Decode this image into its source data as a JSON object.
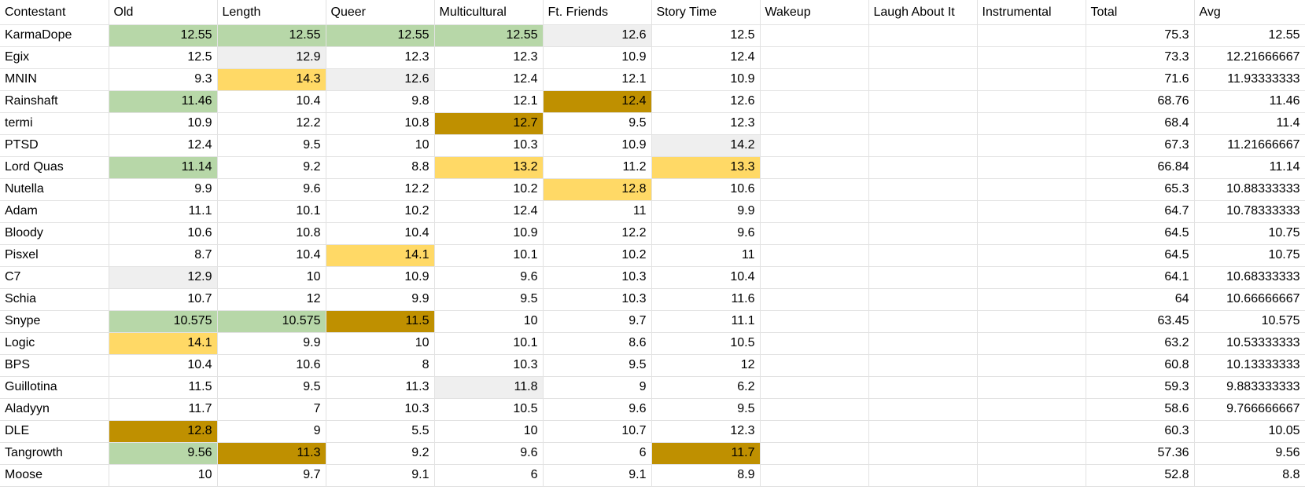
{
  "sheet": {
    "headers": [
      "Contestant",
      "Old",
      "Length",
      "Queer",
      "Multicultural",
      "Ft. Friends",
      "Story Time",
      "Wakeup",
      "Laugh About It",
      "Instrumental",
      "Total",
      "Avg"
    ],
    "fill_colors": {
      "green": "#b7d7a8",
      "gray": "#efefef",
      "yellow": "#ffd966",
      "gold": "#bf9000"
    },
    "rows": [
      {
        "cells": [
          "KarmaDope",
          "12.55",
          "12.55",
          "12.55",
          "12.55",
          "12.6",
          "12.5",
          "",
          "",
          "",
          "75.3",
          "12.55"
        ],
        "fills": [
          "",
          "green",
          "green",
          "green",
          "green",
          "gray",
          "",
          "",
          "",
          "",
          "",
          ""
        ]
      },
      {
        "cells": [
          "Egix",
          "12.5",
          "12.9",
          "12.3",
          "12.3",
          "10.9",
          "12.4",
          "",
          "",
          "",
          "73.3",
          "12.21666667"
        ],
        "fills": [
          "",
          "",
          "gray",
          "",
          "",
          "",
          "",
          "",
          "",
          "",
          "",
          ""
        ]
      },
      {
        "cells": [
          "MNIN",
          "9.3",
          "14.3",
          "12.6",
          "12.4",
          "12.1",
          "10.9",
          "",
          "",
          "",
          "71.6",
          "11.93333333"
        ],
        "fills": [
          "",
          "",
          "yellow",
          "gray",
          "",
          "",
          "",
          "",
          "",
          "",
          "",
          ""
        ]
      },
      {
        "cells": [
          "Rainshaft",
          "11.46",
          "10.4",
          "9.8",
          "12.1",
          "12.4",
          "12.6",
          "",
          "",
          "",
          "68.76",
          "11.46"
        ],
        "fills": [
          "",
          "green",
          "",
          "",
          "",
          "gold",
          "",
          "",
          "",
          "",
          "",
          ""
        ]
      },
      {
        "cells": [
          "termi",
          "10.9",
          "12.2",
          "10.8",
          "12.7",
          "9.5",
          "12.3",
          "",
          "",
          "",
          "68.4",
          "11.4"
        ],
        "fills": [
          "",
          "",
          "",
          "",
          "gold",
          "",
          "",
          "",
          "",
          "",
          "",
          ""
        ]
      },
      {
        "cells": [
          "PTSD",
          "12.4",
          "9.5",
          "10",
          "10.3",
          "10.9",
          "14.2",
          "",
          "",
          "",
          "67.3",
          "11.21666667"
        ],
        "fills": [
          "",
          "",
          "",
          "",
          "",
          "",
          "gray",
          "",
          "",
          "",
          "",
          ""
        ]
      },
      {
        "cells": [
          "Lord Quas",
          "11.14",
          "9.2",
          "8.8",
          "13.2",
          "11.2",
          "13.3",
          "",
          "",
          "",
          "66.84",
          "11.14"
        ],
        "fills": [
          "",
          "green",
          "",
          "",
          "yellow",
          "",
          "yellow",
          "",
          "",
          "",
          "",
          ""
        ]
      },
      {
        "cells": [
          "Nutella",
          "9.9",
          "9.6",
          "12.2",
          "10.2",
          "12.8",
          "10.6",
          "",
          "",
          "",
          "65.3",
          "10.88333333"
        ],
        "fills": [
          "",
          "",
          "",
          "",
          "",
          "yellow",
          "",
          "",
          "",
          "",
          "",
          ""
        ]
      },
      {
        "cells": [
          "Adam",
          "11.1",
          "10.1",
          "10.2",
          "12.4",
          "11",
          "9.9",
          "",
          "",
          "",
          "64.7",
          "10.78333333"
        ],
        "fills": [
          "",
          "",
          "",
          "",
          "",
          "",
          "",
          "",
          "",
          "",
          "",
          ""
        ]
      },
      {
        "cells": [
          "Bloody",
          "10.6",
          "10.8",
          "10.4",
          "10.9",
          "12.2",
          "9.6",
          "",
          "",
          "",
          "64.5",
          "10.75"
        ],
        "fills": [
          "",
          "",
          "",
          "",
          "",
          "",
          "",
          "",
          "",
          "",
          "",
          ""
        ]
      },
      {
        "cells": [
          "Pisxel",
          "8.7",
          "10.4",
          "14.1",
          "10.1",
          "10.2",
          "11",
          "",
          "",
          "",
          "64.5",
          "10.75"
        ],
        "fills": [
          "",
          "",
          "",
          "yellow",
          "",
          "",
          "",
          "",
          "",
          "",
          "",
          ""
        ]
      },
      {
        "cells": [
          "C7",
          "12.9",
          "10",
          "10.9",
          "9.6",
          "10.3",
          "10.4",
          "",
          "",
          "",
          "64.1",
          "10.68333333"
        ],
        "fills": [
          "",
          "gray",
          "",
          "",
          "",
          "",
          "",
          "",
          "",
          "",
          "",
          ""
        ]
      },
      {
        "cells": [
          "Schia",
          "10.7",
          "12",
          "9.9",
          "9.5",
          "10.3",
          "11.6",
          "",
          "",
          "",
          "64",
          "10.66666667"
        ],
        "fills": [
          "",
          "",
          "",
          "",
          "",
          "",
          "",
          "",
          "",
          "",
          "",
          ""
        ]
      },
      {
        "cells": [
          "Snype",
          "10.575",
          "10.575",
          "11.5",
          "10",
          "9.7",
          "11.1",
          "",
          "",
          "",
          "63.45",
          "10.575"
        ],
        "fills": [
          "",
          "green",
          "green",
          "gold",
          "",
          "",
          "",
          "",
          "",
          "",
          "",
          ""
        ]
      },
      {
        "cells": [
          "Logic",
          "14.1",
          "9.9",
          "10",
          "10.1",
          "8.6",
          "10.5",
          "",
          "",
          "",
          "63.2",
          "10.53333333"
        ],
        "fills": [
          "",
          "yellow",
          "",
          "",
          "",
          "",
          "",
          "",
          "",
          "",
          "",
          ""
        ]
      },
      {
        "cells": [
          "BPS",
          "10.4",
          "10.6",
          "8",
          "10.3",
          "9.5",
          "12",
          "",
          "",
          "",
          "60.8",
          "10.13333333"
        ],
        "fills": [
          "",
          "",
          "",
          "",
          "",
          "",
          "",
          "",
          "",
          "",
          "",
          ""
        ]
      },
      {
        "cells": [
          "Guillotina",
          "11.5",
          "9.5",
          "11.3",
          "11.8",
          "9",
          "6.2",
          "",
          "",
          "",
          "59.3",
          "9.883333333"
        ],
        "fills": [
          "",
          "",
          "",
          "",
          "gray",
          "",
          "",
          "",
          "",
          "",
          "",
          ""
        ]
      },
      {
        "cells": [
          "Aladyyn",
          "11.7",
          "7",
          "10.3",
          "10.5",
          "9.6",
          "9.5",
          "",
          "",
          "",
          "58.6",
          "9.766666667"
        ],
        "fills": [
          "",
          "",
          "",
          "",
          "",
          "",
          "",
          "",
          "",
          "",
          "",
          ""
        ]
      },
      {
        "cells": [
          "DLE",
          "12.8",
          "9",
          "5.5",
          "10",
          "10.7",
          "12.3",
          "",
          "",
          "",
          "60.3",
          "10.05"
        ],
        "fills": [
          "",
          "gold",
          "",
          "",
          "",
          "",
          "",
          "",
          "",
          "",
          "",
          ""
        ]
      },
      {
        "cells": [
          "Tangrowth",
          "9.56",
          "11.3",
          "9.2",
          "9.6",
          "6",
          "11.7",
          "",
          "",
          "",
          "57.36",
          "9.56"
        ],
        "fills": [
          "",
          "green",
          "gold",
          "",
          "",
          "",
          "gold",
          "",
          "",
          "",
          "",
          ""
        ]
      },
      {
        "cells": [
          "Moose",
          "10",
          "9.7",
          "9.1",
          "6",
          "9.1",
          "8.9",
          "",
          "",
          "",
          "52.8",
          "8.8"
        ],
        "fills": [
          "",
          "",
          "",
          "",
          "",
          "",
          "",
          "",
          "",
          "",
          "",
          ""
        ]
      }
    ]
  }
}
